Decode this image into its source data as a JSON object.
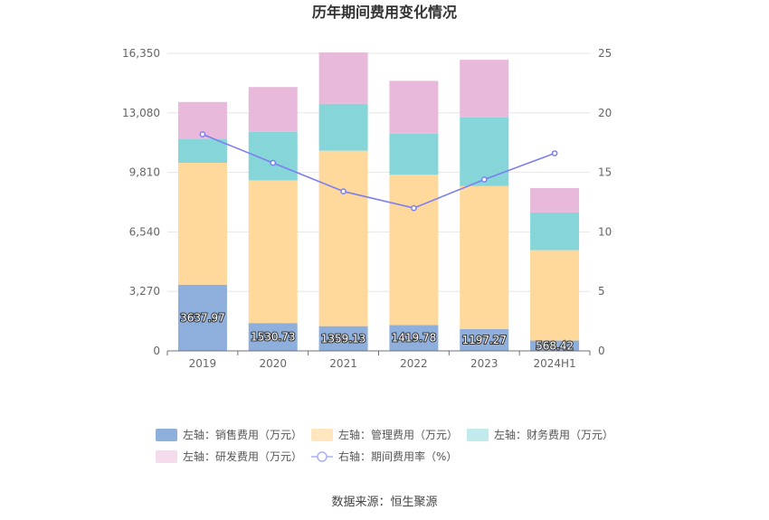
{
  "chart_data": {
    "type": "bar",
    "stacked": true,
    "title": "历年期间费用变化情况",
    "categories": [
      "2019",
      "2020",
      "2021",
      "2022",
      "2023",
      "2024H1"
    ],
    "left_axis": {
      "min": 0,
      "max": 16350,
      "ticks": [
        "0",
        "3,270",
        "6,540",
        "9,810",
        "13,080",
        "16,350"
      ],
      "tick_values": [
        0,
        3270,
        6540,
        9810,
        13080,
        16350
      ]
    },
    "right_axis": {
      "min": 0,
      "max": 25,
      "ticks": [
        "0",
        "5",
        "10",
        "15",
        "20",
        "25"
      ],
      "tick_values": [
        0,
        5,
        10,
        15,
        20,
        25
      ]
    },
    "grid": true,
    "legend_position": "bottom",
    "series": [
      {
        "name": "左轴：销售费用（万元）",
        "axis": "left",
        "color": "#8eaedb",
        "values": [
          3637.97,
          1530.73,
          1359.13,
          1419.78,
          1197.27,
          568.42
        ],
        "labels": [
          "3637.97",
          "1530.73",
          "1359.13",
          "1419.78",
          "1197.27",
          "568.42"
        ]
      },
      {
        "name": "左轴：管理费用（万元）",
        "axis": "left",
        "color": "#ffd89c",
        "values": [
          6700,
          7840,
          9640,
          8260,
          7860,
          4970
        ]
      },
      {
        "name": "左轴：财务费用（万元）",
        "axis": "left",
        "color": "#86d5d9",
        "values": [
          1310,
          2670,
          2580,
          2260,
          3770,
          2070
        ]
      },
      {
        "name": "左轴：研发费用（万元）",
        "axis": "left",
        "color": "#e8b9da",
        "values": [
          2030,
          2460,
          2820,
          2900,
          3170,
          1340
        ]
      },
      {
        "name": "右轴：期间费用率（%）",
        "axis": "right",
        "type": "line",
        "color": "#7b7ff0",
        "values": [
          18.2,
          15.8,
          13.4,
          12.0,
          14.4,
          16.6
        ]
      }
    ],
    "legend_colors": [
      "#8eaedb",
      "#ffe6bf",
      "#c0eaec",
      "#f4dcec",
      "#aab0f5"
    ]
  },
  "source": "数据来源：恒生聚源"
}
